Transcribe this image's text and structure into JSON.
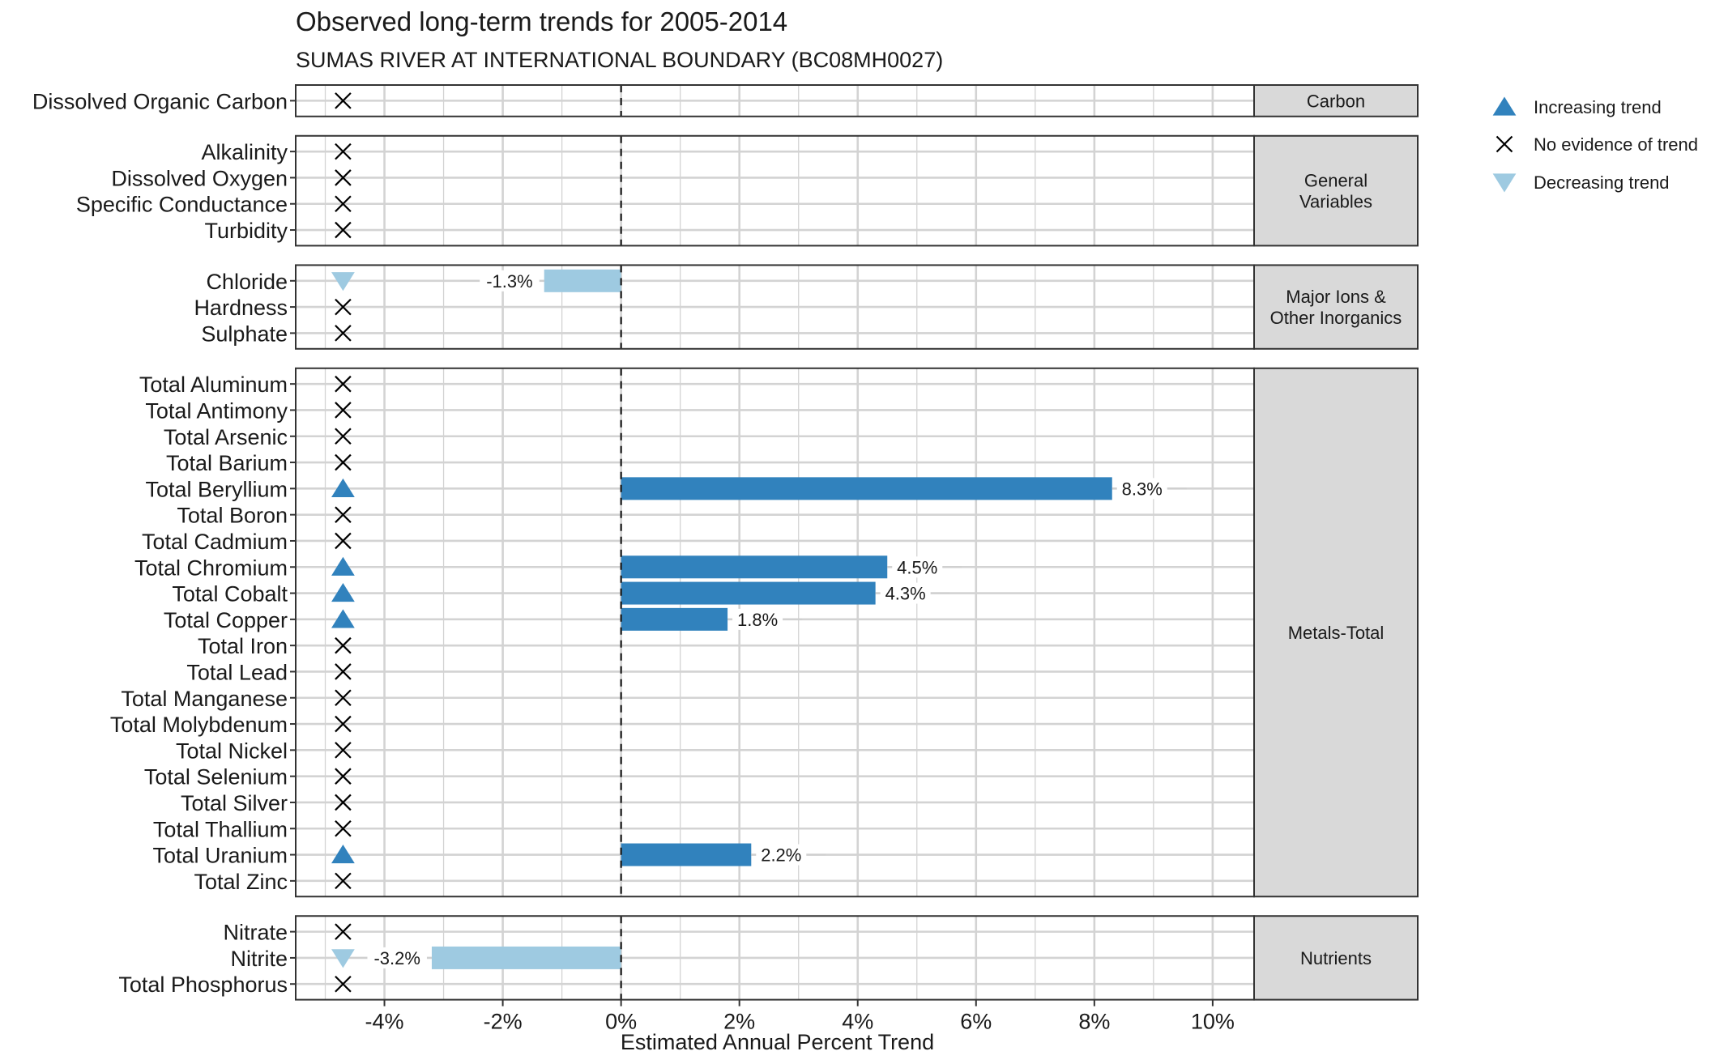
{
  "chart_data": {
    "type": "bar",
    "title": "Observed long-term trends for 2005-2014",
    "subtitle": "SUMAS RIVER AT INTERNATIONAL BOUNDARY (BC08MH0027)",
    "xlabel": "Estimated Annual Percent Trend",
    "ylabel": "",
    "xlim": [
      -5.5,
      10.7
    ],
    "x_ticks": [
      -4,
      -2,
      0,
      2,
      4,
      6,
      8,
      10
    ],
    "x_tick_labels": [
      "-4%",
      "-2%",
      "0%",
      "2%",
      "4%",
      "6%",
      "8%",
      "10%"
    ],
    "grid": true,
    "zero_line": "dashed",
    "legend_position": "right",
    "legend": [
      {
        "key": "increasing",
        "label": "Increasing trend"
      },
      {
        "key": "none",
        "label": "No evidence of trend"
      },
      {
        "key": "decreasing",
        "label": "Decreasing trend"
      }
    ],
    "colors": {
      "increasing": "#3182bd",
      "decreasing": "#9ecae1",
      "none": "#000000",
      "strip_bg": "#d9d9d9",
      "grid": "#d3d3d3"
    },
    "panels": [
      {
        "group": "Carbon",
        "strip_lines": [
          "Carbon"
        ],
        "variables": [
          {
            "name": "Dissolved Organic Carbon",
            "trend": "none",
            "value": null,
            "label": ""
          }
        ]
      },
      {
        "group": "General Variables",
        "strip_lines": [
          "General",
          "Variables"
        ],
        "variables": [
          {
            "name": "Alkalinity",
            "trend": "none",
            "value": null,
            "label": ""
          },
          {
            "name": "Dissolved Oxygen",
            "trend": "none",
            "value": null,
            "label": ""
          },
          {
            "name": "Specific Conductance",
            "trend": "none",
            "value": null,
            "label": ""
          },
          {
            "name": "Turbidity",
            "trend": "none",
            "value": null,
            "label": ""
          }
        ]
      },
      {
        "group": "Major Ions & Other Inorganics",
        "strip_lines": [
          "Major Ions &",
          "Other Inorganics"
        ],
        "variables": [
          {
            "name": "Chloride",
            "trend": "decreasing",
            "value": -1.3,
            "label": "-1.3%"
          },
          {
            "name": "Hardness",
            "trend": "none",
            "value": null,
            "label": ""
          },
          {
            "name": "Sulphate",
            "trend": "none",
            "value": null,
            "label": ""
          }
        ]
      },
      {
        "group": "Metals-Total",
        "strip_lines": [
          "Metals-Total"
        ],
        "variables": [
          {
            "name": "Total Aluminum",
            "trend": "none",
            "value": null,
            "label": ""
          },
          {
            "name": "Total Antimony",
            "trend": "none",
            "value": null,
            "label": ""
          },
          {
            "name": "Total Arsenic",
            "trend": "none",
            "value": null,
            "label": ""
          },
          {
            "name": "Total Barium",
            "trend": "none",
            "value": null,
            "label": ""
          },
          {
            "name": "Total Beryllium",
            "trend": "increasing",
            "value": 8.3,
            "label": "8.3%"
          },
          {
            "name": "Total Boron",
            "trend": "none",
            "value": null,
            "label": ""
          },
          {
            "name": "Total Cadmium",
            "trend": "none",
            "value": null,
            "label": ""
          },
          {
            "name": "Total Chromium",
            "trend": "increasing",
            "value": 4.5,
            "label": "4.5%"
          },
          {
            "name": "Total Cobalt",
            "trend": "increasing",
            "value": 4.3,
            "label": "4.3%"
          },
          {
            "name": "Total Copper",
            "trend": "increasing",
            "value": 1.8,
            "label": "1.8%"
          },
          {
            "name": "Total Iron",
            "trend": "none",
            "value": null,
            "label": ""
          },
          {
            "name": "Total Lead",
            "trend": "none",
            "value": null,
            "label": ""
          },
          {
            "name": "Total Manganese",
            "trend": "none",
            "value": null,
            "label": ""
          },
          {
            "name": "Total Molybdenum",
            "trend": "none",
            "value": null,
            "label": ""
          },
          {
            "name": "Total Nickel",
            "trend": "none",
            "value": null,
            "label": ""
          },
          {
            "name": "Total Selenium",
            "trend": "none",
            "value": null,
            "label": ""
          },
          {
            "name": "Total Silver",
            "trend": "none",
            "value": null,
            "label": ""
          },
          {
            "name": "Total Thallium",
            "trend": "none",
            "value": null,
            "label": ""
          },
          {
            "name": "Total Uranium",
            "trend": "increasing",
            "value": 2.2,
            "label": "2.2%"
          },
          {
            "name": "Total Zinc",
            "trend": "none",
            "value": null,
            "label": ""
          }
        ]
      },
      {
        "group": "Nutrients",
        "strip_lines": [
          "Nutrients"
        ],
        "variables": [
          {
            "name": "Nitrate",
            "trend": "none",
            "value": null,
            "label": ""
          },
          {
            "name": "Nitrite",
            "trend": "decreasing",
            "value": -3.2,
            "label": "-3.2%"
          },
          {
            "name": "Total Phosphorus",
            "trend": "none",
            "value": null,
            "label": ""
          }
        ]
      }
    ]
  }
}
